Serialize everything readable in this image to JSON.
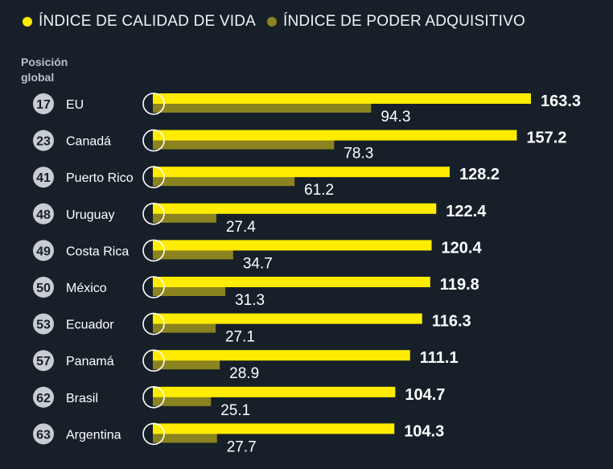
{
  "legend": {
    "quality_label": "ÍNDICE DE CALIDAD DE VIDA",
    "purchasing_label": "ÍNDICE DE PODER ADQUISITIVO"
  },
  "position_header": {
    "line1": "Posición",
    "line2": "global"
  },
  "colors": {
    "background": "#172029",
    "quality": "#ffec00",
    "purchasing": "#8a8320",
    "rank_badge": "#c9cdd2"
  },
  "chart_data": {
    "type": "bar",
    "categories": [
      "EU",
      "Canadá",
      "Puerto Rico",
      "Uruguay",
      "Costa Rica",
      "México",
      "Ecuador",
      "Panamá",
      "Brasil",
      "Argentina"
    ],
    "ranks": [
      17,
      23,
      41,
      48,
      49,
      50,
      53,
      57,
      62,
      63
    ],
    "flags": [
      "usa-flag-icon",
      "canada-flag-icon",
      "puerto-rico-flag-icon",
      "uruguay-flag-icon",
      "costa-rica-flag-icon",
      "mexico-flag-icon",
      "ecuador-flag-icon",
      "panama-flag-icon",
      "brazil-flag-icon",
      "argentina-flag-icon"
    ],
    "series": [
      {
        "name": "ÍNDICE DE CALIDAD DE VIDA",
        "values": [
          163.3,
          157.2,
          128.2,
          122.4,
          120.4,
          119.8,
          116.3,
          111.1,
          104.7,
          104.3
        ]
      },
      {
        "name": "ÍNDICE DE PODER ADQUISITIVO",
        "values": [
          94.3,
          78.3,
          61.2,
          27.4,
          34.7,
          31.3,
          27.1,
          28.9,
          25.1,
          27.7
        ]
      }
    ],
    "xlim": [
      0,
      163.3
    ],
    "grid": false,
    "legend_position": "top-left"
  }
}
